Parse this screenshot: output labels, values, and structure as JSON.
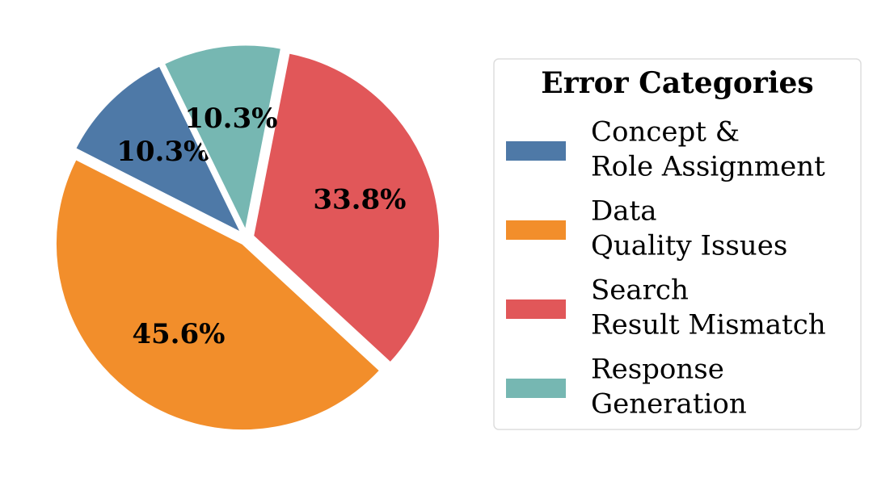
{
  "chart_data": {
    "type": "pie",
    "categories": [
      "Concept &\nRole Assignment",
      "Data\nQuality Issues",
      "Search\nResult Mismatch",
      "Response\nGeneration"
    ],
    "values": [
      10.3,
      45.6,
      33.8,
      10.3
    ],
    "value_labels": [
      "10.3%",
      "45.6%",
      "33.8%",
      "10.3%"
    ],
    "colors": [
      "#4e79a7",
      "#f28e2b",
      "#e15759",
      "#76b7b2"
    ],
    "legend_title": "Error Categories",
    "legend": "right"
  }
}
